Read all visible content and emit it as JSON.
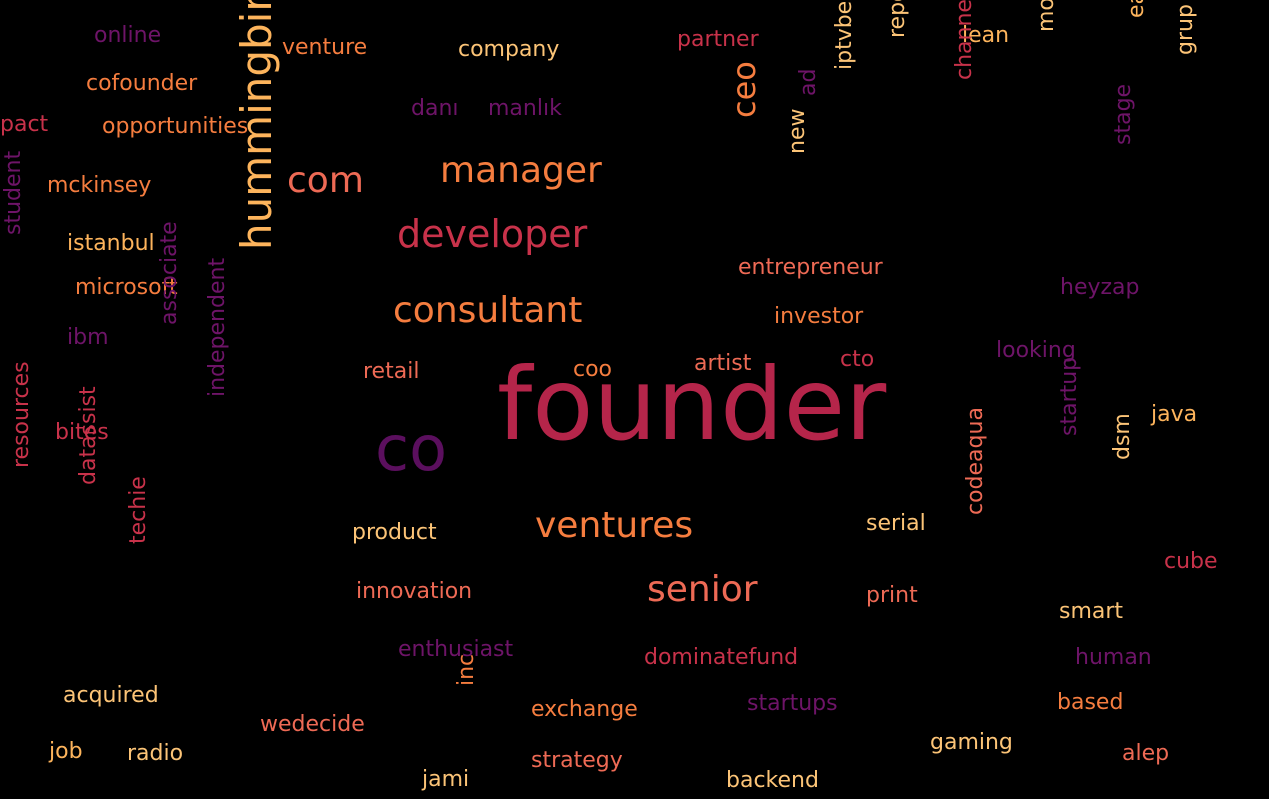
{
  "colors": {
    "background": "#000000",
    "palette": {
      "crimson": "#b5254a",
      "purple": "#5b0f5e",
      "orange": "#f57d3f",
      "salmon": "#ee6a55",
      "gold": "#fdb45c",
      "peach": "#fcc477",
      "rose": "#c8324a",
      "plum": "#6e1468"
    }
  },
  "words": [
    {
      "text": "founder",
      "color": "crimson",
      "weight": 1.0
    },
    {
      "text": "co",
      "color": "purple",
      "weight": 0.62
    },
    {
      "text": "hummingbird",
      "color": "gold",
      "weight": 0.42
    },
    {
      "text": "developer",
      "color": "rose",
      "weight": 0.38
    },
    {
      "text": "manager",
      "color": "orange",
      "weight": 0.36
    },
    {
      "text": "com",
      "color": "salmon",
      "weight": 0.36
    },
    {
      "text": "consultant",
      "color": "orange",
      "weight": 0.36
    },
    {
      "text": "ventures",
      "color": "orange",
      "weight": 0.36
    },
    {
      "text": "senior",
      "color": "salmon",
      "weight": 0.36
    },
    {
      "text": "ceo",
      "color": "orange",
      "weight": 0.32
    },
    {
      "text": "online",
      "color": "plum",
      "weight": 0.22
    },
    {
      "text": "venture",
      "color": "orange",
      "weight": 0.22
    },
    {
      "text": "company",
      "color": "peach",
      "weight": 0.22
    },
    {
      "text": "partner",
      "color": "rose",
      "weight": 0.22
    },
    {
      "text": "lean",
      "color": "gold",
      "weight": 0.22
    },
    {
      "text": "early",
      "color": "gold",
      "weight": 0.22
    },
    {
      "text": "grup",
      "color": "peach",
      "weight": 0.22
    },
    {
      "text": "modagram",
      "color": "peach",
      "weight": 0.22
    },
    {
      "text": "channel",
      "color": "rose",
      "weight": 0.22
    },
    {
      "text": "reporter",
      "color": "peach",
      "weight": 0.22
    },
    {
      "text": "iptvbeat",
      "color": "peach",
      "weight": 0.22
    },
    {
      "text": "ad",
      "color": "plum",
      "weight": 0.22
    },
    {
      "text": "new",
      "color": "peach",
      "weight": 0.22
    },
    {
      "text": "stage",
      "color": "plum",
      "weight": 0.22
    },
    {
      "text": "cofounder",
      "color": "orange",
      "weight": 0.22
    },
    {
      "text": "pact",
      "color": "rose",
      "weight": 0.22
    },
    {
      "text": "opportunities",
      "color": "orange",
      "weight": 0.22
    },
    {
      "text": "danı",
      "color": "plum",
      "weight": 0.22
    },
    {
      "text": "manlık",
      "color": "plum",
      "weight": 0.22
    },
    {
      "text": "mckinsey",
      "color": "orange",
      "weight": 0.22
    },
    {
      "text": "istanbul",
      "color": "gold",
      "weight": 0.22
    },
    {
      "text": "student",
      "color": "plum",
      "weight": 0.22
    },
    {
      "text": "microsoft",
      "color": "orange",
      "weight": 0.22
    },
    {
      "text": "ibm",
      "color": "plum",
      "weight": 0.22
    },
    {
      "text": "associate",
      "color": "plum",
      "weight": 0.22
    },
    {
      "text": "entrepreneur",
      "color": "salmon",
      "weight": 0.22
    },
    {
      "text": "heyzap",
      "color": "plum",
      "weight": 0.22
    },
    {
      "text": "investor",
      "color": "orange",
      "weight": 0.22
    },
    {
      "text": "looking",
      "color": "plum",
      "weight": 0.22
    },
    {
      "text": "retail",
      "color": "salmon",
      "weight": 0.22
    },
    {
      "text": "coo",
      "color": "orange",
      "weight": 0.22
    },
    {
      "text": "artist",
      "color": "salmon",
      "weight": 0.22
    },
    {
      "text": "cto",
      "color": "rose",
      "weight": 0.22
    },
    {
      "text": "java",
      "color": "gold",
      "weight": 0.22
    },
    {
      "text": "bites",
      "color": "rose",
      "weight": 0.22
    },
    {
      "text": "independent",
      "color": "plum",
      "weight": 0.22
    },
    {
      "text": "startup",
      "color": "plum",
      "weight": 0.22
    },
    {
      "text": "dsm",
      "color": "peach",
      "weight": 0.22
    },
    {
      "text": "resources",
      "color": "rose",
      "weight": 0.22
    },
    {
      "text": "datassist",
      "color": "rose",
      "weight": 0.22
    },
    {
      "text": "techie",
      "color": "rose",
      "weight": 0.22
    },
    {
      "text": "product",
      "color": "peach",
      "weight": 0.22
    },
    {
      "text": "serial",
      "color": "peach",
      "weight": 0.22
    },
    {
      "text": "codeaqua",
      "color": "salmon",
      "weight": 0.22
    },
    {
      "text": "cube",
      "color": "rose",
      "weight": 0.22
    },
    {
      "text": "innovation",
      "color": "salmon",
      "weight": 0.22
    },
    {
      "text": "print",
      "color": "salmon",
      "weight": 0.22
    },
    {
      "text": "smart",
      "color": "peach",
      "weight": 0.22
    },
    {
      "text": "enthusiast",
      "color": "plum",
      "weight": 0.22
    },
    {
      "text": "dominatefund",
      "color": "rose",
      "weight": 0.22
    },
    {
      "text": "human",
      "color": "plum",
      "weight": 0.22
    },
    {
      "text": "acquired",
      "color": "peach",
      "weight": 0.22
    },
    {
      "text": "inc",
      "color": "orange",
      "weight": 0.22
    },
    {
      "text": "exchange",
      "color": "orange",
      "weight": 0.22
    },
    {
      "text": "startups",
      "color": "plum",
      "weight": 0.22
    },
    {
      "text": "based",
      "color": "orange",
      "weight": 0.22
    },
    {
      "text": "wedecide",
      "color": "salmon",
      "weight": 0.22
    },
    {
      "text": "gaming",
      "color": "peach",
      "weight": 0.22
    },
    {
      "text": "job",
      "color": "gold",
      "weight": 0.22
    },
    {
      "text": "radio",
      "color": "peach",
      "weight": 0.22
    },
    {
      "text": "strategy",
      "color": "salmon",
      "weight": 0.22
    },
    {
      "text": "alep",
      "color": "salmon",
      "weight": 0.22
    },
    {
      "text": "jami",
      "color": "peach",
      "weight": 0.22
    },
    {
      "text": "backend",
      "color": "peach",
      "weight": 0.22
    }
  ]
}
